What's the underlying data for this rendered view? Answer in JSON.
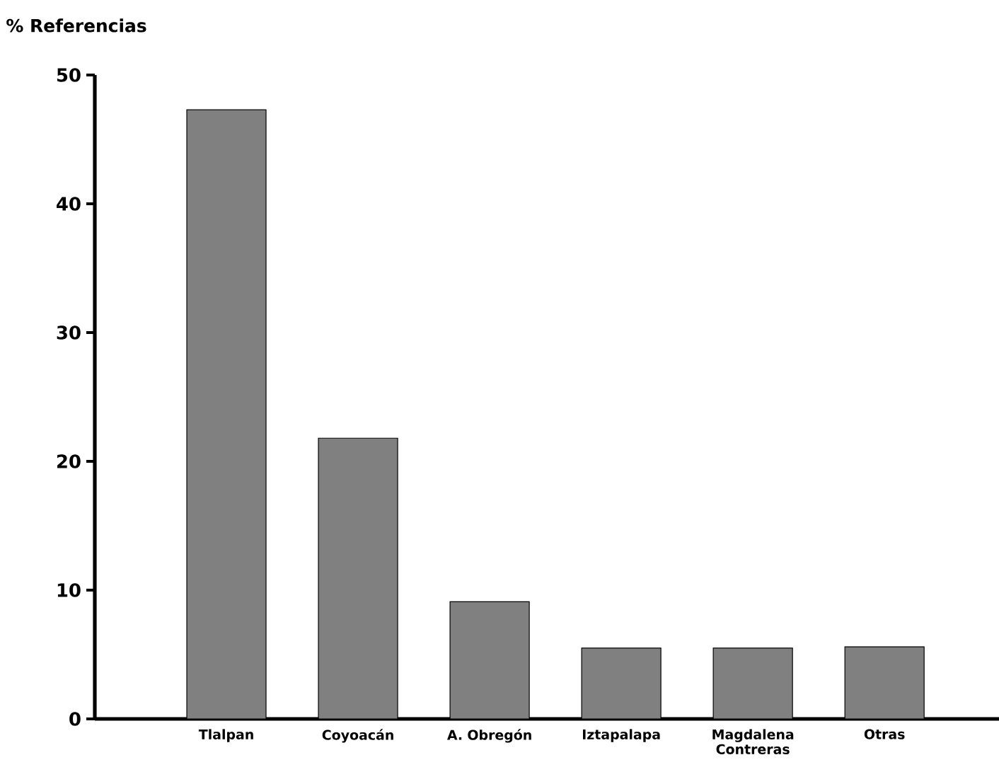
{
  "chart_data": {
    "type": "bar",
    "ylabel": "% Referencias",
    "categories": [
      "Tlalpan",
      "Coyoacán",
      "A. Obregón",
      "Iztapalapa",
      "Magdalena Contreras",
      "Otras"
    ],
    "values": [
      47.3,
      21.8,
      9.1,
      5.5,
      5.5,
      5.6
    ],
    "color": "#808080",
    "ylim": [
      0,
      50
    ],
    "yticks": [
      0,
      10,
      20,
      30,
      40,
      50
    ]
  }
}
